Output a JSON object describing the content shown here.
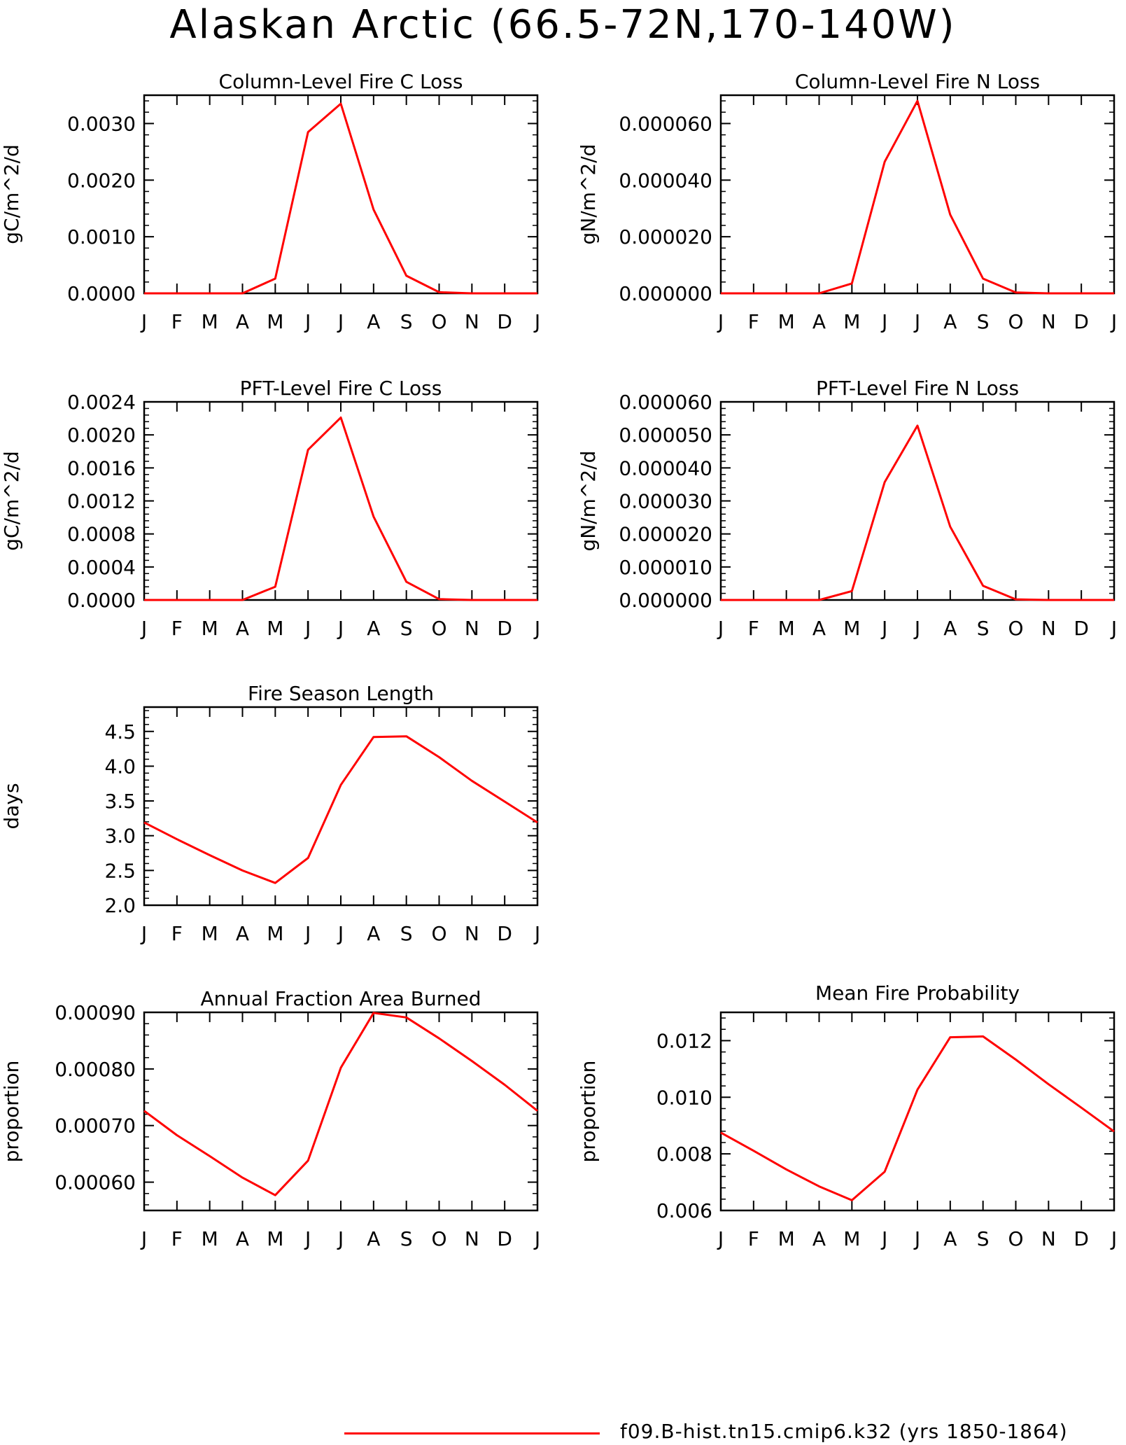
{
  "title": "Alaskan Arctic (66.5-72N,170-140W)",
  "legend": {
    "line_color": "#ff0000",
    "label": "f09.B-hist.tn15.cmip6.k32 (yrs 1850-1864)"
  },
  "chart_data": [
    {
      "type": "line",
      "title": "Column-Level Fire C Loss",
      "ylabel": "gC/m^2/d",
      "x": [
        "J",
        "F",
        "M",
        "A",
        "M",
        "J",
        "J",
        "A",
        "S",
        "O",
        "N",
        "D",
        "J"
      ],
      "ylim": [
        0,
        0.0035
      ],
      "yticks": [
        "0.0000",
        "0.0010",
        "0.0020",
        "0.0030"
      ],
      "series": [
        {
          "values": [
            0,
            0,
            0,
            0,
            0.00026,
            0.00285,
            0.00335,
            0.00148,
            0.00031,
            2e-05,
            0,
            0,
            0
          ]
        }
      ]
    },
    {
      "type": "line",
      "title": "Column-Level Fire N Loss",
      "ylabel": "gN/m^2/d",
      "x": [
        "J",
        "F",
        "M",
        "A",
        "M",
        "J",
        "J",
        "A",
        "S",
        "O",
        "N",
        "D",
        "J"
      ],
      "ylim": [
        0,
        7e-05
      ],
      "yticks": [
        "0.000000",
        "0.000020",
        "0.000040",
        "0.000060"
      ],
      "series": [
        {
          "values": [
            0,
            0,
            0,
            0,
            3.5e-06,
            4.65e-05,
            6.8e-05,
            2.78e-05,
            5.2e-06,
            3e-07,
            0,
            0,
            0
          ]
        }
      ]
    },
    {
      "type": "line",
      "title": "PFT-Level Fire C Loss",
      "ylabel": "gC/m^2/d",
      "x": [
        "J",
        "F",
        "M",
        "A",
        "M",
        "J",
        "J",
        "A",
        "S",
        "O",
        "N",
        "D",
        "J"
      ],
      "ylim": [
        0,
        0.0024
      ],
      "yticks": [
        "0.0000",
        "0.0004",
        "0.0008",
        "0.0012",
        "0.0016",
        "0.0020",
        "0.0024"
      ],
      "series": [
        {
          "values": [
            0,
            0,
            0,
            0,
            0.00016,
            0.00182,
            0.00221,
            0.00101,
            0.00022,
            1e-05,
            0,
            0,
            0
          ]
        }
      ]
    },
    {
      "type": "line",
      "title": "PFT-Level Fire N Loss",
      "ylabel": "gN/m^2/d",
      "x": [
        "J",
        "F",
        "M",
        "A",
        "M",
        "J",
        "J",
        "A",
        "S",
        "O",
        "N",
        "D",
        "J"
      ],
      "ylim": [
        0,
        6e-05
      ],
      "yticks": [
        "0.000000",
        "0.000010",
        "0.000020",
        "0.000030",
        "0.000040",
        "0.000050",
        "0.000060"
      ],
      "series": [
        {
          "values": [
            0,
            0,
            0,
            0,
            2.7e-06,
            3.57e-05,
            5.28e-05,
            2.22e-05,
            4.3e-06,
            2e-07,
            0,
            0,
            0
          ]
        }
      ]
    },
    {
      "type": "line",
      "title": "Fire Season Length",
      "ylabel": "days",
      "x": [
        "J",
        "F",
        "M",
        "A",
        "M",
        "J",
        "J",
        "A",
        "S",
        "O",
        "N",
        "D",
        "J"
      ],
      "ylim": [
        2.0,
        4.85
      ],
      "yticks": [
        "2.0",
        "2.5",
        "3.0",
        "3.5",
        "4.0",
        "4.5"
      ],
      "series": [
        {
          "values": [
            3.19,
            2.95,
            2.72,
            2.5,
            2.32,
            2.68,
            3.73,
            4.42,
            4.43,
            4.13,
            3.79,
            3.49,
            3.19
          ]
        }
      ]
    },
    {
      "type": "line",
      "title": "Annual Fraction Area Burned",
      "ylabel": "proportion",
      "x": [
        "J",
        "F",
        "M",
        "A",
        "M",
        "J",
        "J",
        "A",
        "S",
        "O",
        "N",
        "D",
        "J"
      ],
      "ylim": [
        0.00055,
        0.0009
      ],
      "yticks": [
        "0.00060",
        "0.00070",
        "0.00080",
        "0.00090"
      ],
      "series": [
        {
          "values": [
            0.000726,
            0.000683,
            0.000646,
            0.000608,
            0.000577,
            0.000638,
            0.000802,
            0.000899,
            0.000891,
            0.000854,
            0.000814,
            0.000772,
            0.000726
          ]
        }
      ]
    },
    {
      "type": "line",
      "title": "Mean Fire Probability",
      "ylabel": "proportion",
      "x": [
        "J",
        "F",
        "M",
        "A",
        "M",
        "J",
        "J",
        "A",
        "S",
        "O",
        "N",
        "D",
        "J"
      ],
      "ylim": [
        0.006,
        0.013
      ],
      "yticks": [
        "0.006",
        "0.008",
        "0.010",
        "0.012"
      ],
      "series": [
        {
          "values": [
            0.00875,
            0.00811,
            0.00745,
            0.00685,
            0.00636,
            0.00737,
            0.01027,
            0.01212,
            0.01215,
            0.01133,
            0.01046,
            0.00963,
            0.00879
          ]
        }
      ]
    }
  ]
}
